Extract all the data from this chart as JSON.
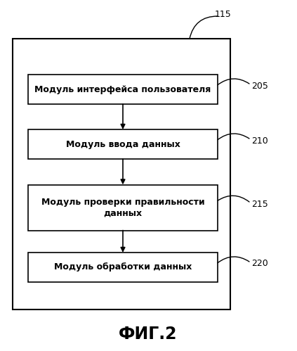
{
  "title": "ФИГ.2",
  "label_115": "115",
  "labels": [
    "205",
    "210",
    "215",
    "220"
  ],
  "box_texts": [
    "Модуль интерфейса пользователя",
    "Модуль ввода данных",
    "Модуль проверки правильности\nданных",
    "Модуль обработки данных"
  ],
  "bg_color": "#ffffff",
  "box_facecolor": "#ffffff",
  "box_edgecolor": "#000000",
  "text_color": "#000000",
  "arrow_color": "#000000",
  "outer_box_color": "#000000",
  "font_size": 9.0,
  "title_font_size": 17
}
